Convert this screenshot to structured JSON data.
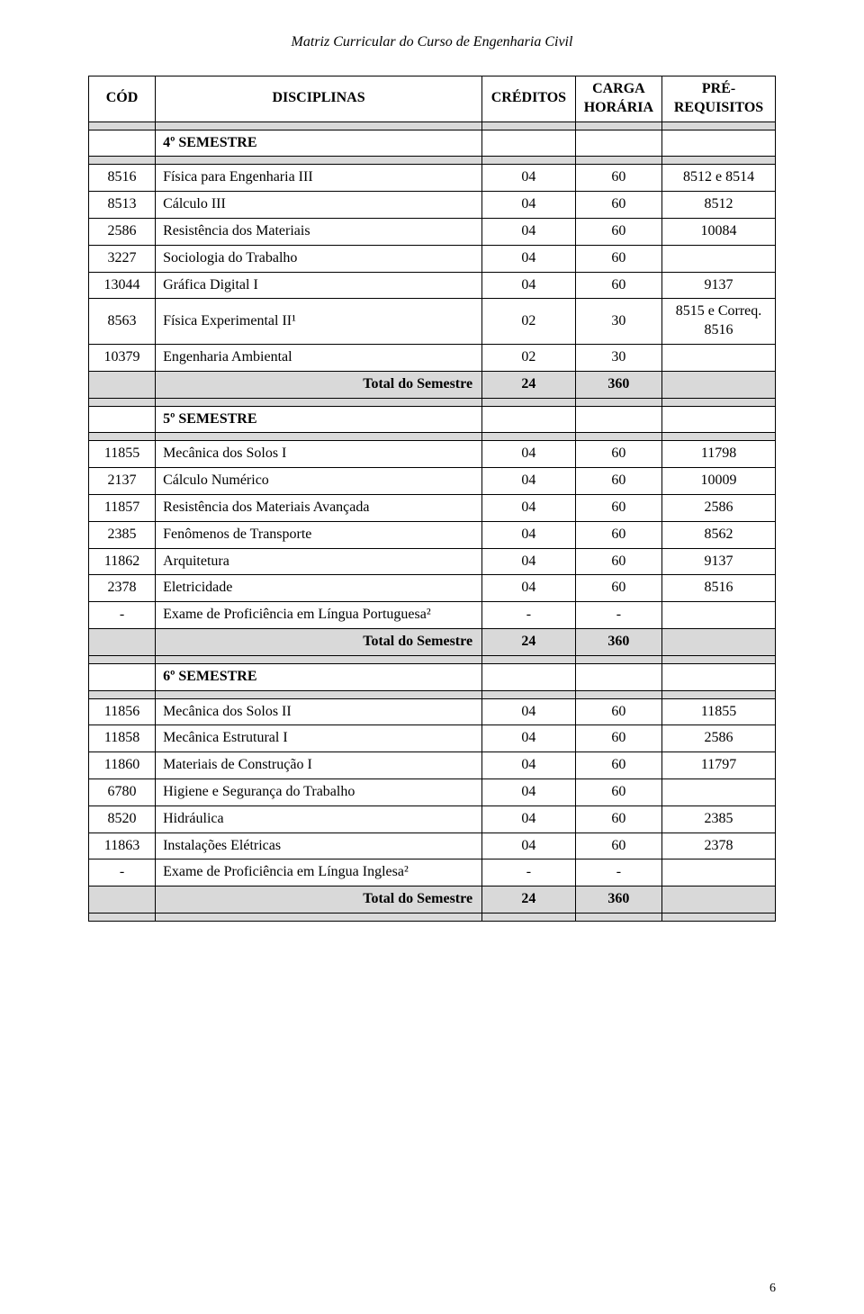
{
  "doc_header": "Matriz Curricular do Curso de Engenharia Civil",
  "page_number": "6",
  "table": {
    "header": {
      "cod": "CÓD",
      "disc": "DISCIPLINAS",
      "cred": "CRÉDITOS",
      "carga": "CARGA HORÁRIA",
      "req": "PRÉ-REQUISITOS"
    },
    "total_label": "Total do Semestre",
    "rows": [
      {
        "type": "blank_shaded"
      },
      {
        "type": "section",
        "label": "4º SEMESTRE"
      },
      {
        "type": "blank_shaded"
      },
      {
        "type": "data",
        "cod": "8516",
        "disc": "Física para Engenharia III",
        "cred": "04",
        "carga": "60",
        "req": "8512 e 8514"
      },
      {
        "type": "data",
        "cod": "8513",
        "disc": "Cálculo III",
        "cred": "04",
        "carga": "60",
        "req": "8512"
      },
      {
        "type": "data",
        "cod": "2586",
        "disc": "Resistência dos Materiais",
        "cred": "04",
        "carga": "60",
        "req": "10084"
      },
      {
        "type": "data",
        "cod": "3227",
        "disc": "Sociologia do Trabalho",
        "cred": "04",
        "carga": "60",
        "req": ""
      },
      {
        "type": "data",
        "cod": "13044",
        "disc": "Gráfica Digital I",
        "cred": "04",
        "carga": "60",
        "req": "9137"
      },
      {
        "type": "data",
        "cod": "8563",
        "disc": "Física Experimental II¹",
        "cred": "02",
        "carga": "30",
        "req": "8515 e Correq. 8516"
      },
      {
        "type": "data",
        "cod": "10379",
        "disc": "Engenharia Ambiental",
        "cred": "02",
        "carga": "30",
        "req": ""
      },
      {
        "type": "total",
        "cred": "24",
        "carga": "360"
      },
      {
        "type": "blank_shaded"
      },
      {
        "type": "section",
        "label": "5º SEMESTRE"
      },
      {
        "type": "blank_shaded"
      },
      {
        "type": "data",
        "cod": "11855",
        "disc": "Mecânica dos Solos I",
        "cred": "04",
        "carga": "60",
        "req": "11798"
      },
      {
        "type": "data",
        "cod": "2137",
        "disc": "Cálculo Numérico",
        "cred": "04",
        "carga": "60",
        "req": "10009"
      },
      {
        "type": "data",
        "cod": "11857",
        "disc": "Resistência dos Materiais Avançada",
        "cred": "04",
        "carga": "60",
        "req": "2586"
      },
      {
        "type": "data",
        "cod": "2385",
        "disc": "Fenômenos de Transporte",
        "cred": "04",
        "carga": "60",
        "req": "8562"
      },
      {
        "type": "data",
        "cod": "11862",
        "disc": "Arquitetura",
        "cred": "04",
        "carga": "60",
        "req": "9137"
      },
      {
        "type": "data",
        "cod": "2378",
        "disc": "Eletricidade",
        "cred": "04",
        "carga": "60",
        "req": "8516"
      },
      {
        "type": "data",
        "cod": "-",
        "disc": "Exame de Proficiência em Língua Portuguesa²",
        "cred": "-",
        "carga": "-",
        "req": ""
      },
      {
        "type": "total",
        "cred": "24",
        "carga": "360"
      },
      {
        "type": "blank_shaded"
      },
      {
        "type": "section",
        "label": "6º SEMESTRE"
      },
      {
        "type": "blank_shaded"
      },
      {
        "type": "data",
        "cod": "11856",
        "disc": "Mecânica dos Solos II",
        "cred": "04",
        "carga": "60",
        "req": "11855"
      },
      {
        "type": "data",
        "cod": "11858",
        "disc": "Mecânica Estrutural I",
        "cred": "04",
        "carga": "60",
        "req": "2586"
      },
      {
        "type": "data",
        "cod": "11860",
        "disc": "Materiais de Construção I",
        "cred": "04",
        "carga": "60",
        "req": "11797"
      },
      {
        "type": "data",
        "cod": "6780",
        "disc": "Higiene e Segurança do Trabalho",
        "cred": "04",
        "carga": "60",
        "req": ""
      },
      {
        "type": "data",
        "cod": "8520",
        "disc": "Hidráulica",
        "cred": "04",
        "carga": "60",
        "req": "2385"
      },
      {
        "type": "data",
        "cod": "11863",
        "disc": "Instalações Elétricas",
        "cred": "04",
        "carga": "60",
        "req": "2378"
      },
      {
        "type": "data",
        "cod": "-",
        "disc": "Exame de Proficiência em Língua Inglesa²",
        "cred": "-",
        "carga": "-",
        "req": ""
      },
      {
        "type": "total",
        "cred": "24",
        "carga": "360"
      },
      {
        "type": "blank_shaded"
      }
    ]
  }
}
